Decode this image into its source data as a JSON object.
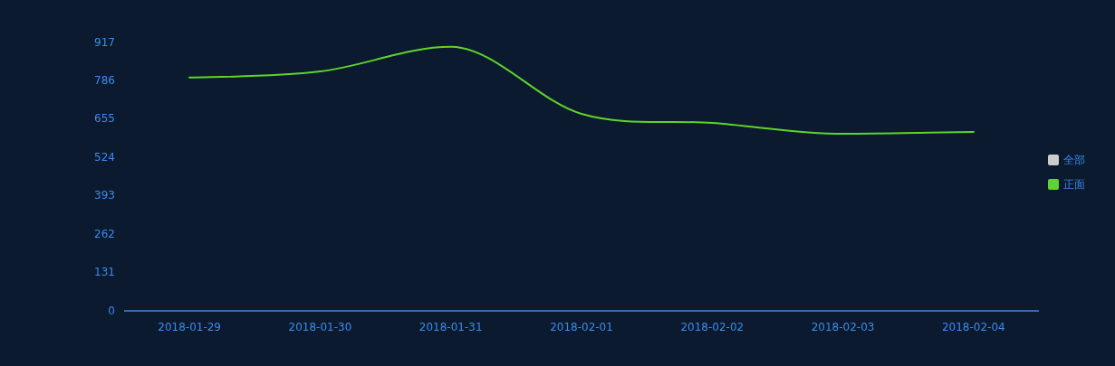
{
  "chart_data": {
    "type": "line",
    "categories": [
      "2018-01-29",
      "2018-01-30",
      "2018-01-31",
      "2018-02-01",
      "2018-02-02",
      "2018-02-03",
      "2018-02-04"
    ],
    "series": [
      {
        "name": "全部",
        "color": "#cccccc",
        "values": [
          null,
          null,
          null,
          null,
          null,
          null,
          null
        ]
      },
      {
        "name": "正面",
        "color": "#5fd42a",
        "values": [
          797,
          818,
          902,
          673,
          642,
          605,
          611
        ]
      }
    ],
    "ylim": [
      0,
      917
    ],
    "yticks": [
      0,
      131,
      262,
      393,
      524,
      655,
      786,
      917
    ],
    "legend": "right",
    "marker": "none"
  }
}
